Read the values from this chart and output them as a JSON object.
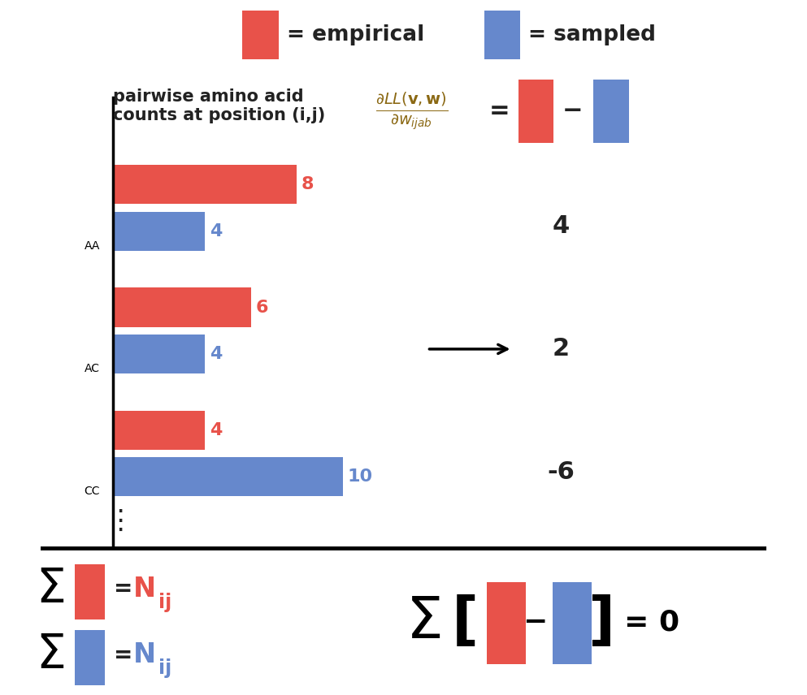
{
  "red_color": "#E8524A",
  "blue_color": "#6688CC",
  "background": "#FFFFFF",
  "legend_text_empirical": "= empirical",
  "legend_text_sampled": "= sampled",
  "label_text": "pairwise amino acid\ncounts at position (i,j)",
  "categories": [
    "AA",
    "AC",
    "CC"
  ],
  "empirical_vals": [
    8,
    6,
    4
  ],
  "sampled_vals": [
    4,
    4,
    10
  ],
  "derivatives": [
    "4",
    "2",
    "-6"
  ],
  "empirical_labels": [
    "8",
    "6",
    "4"
  ],
  "sampled_labels": [
    "4",
    "4",
    "10"
  ],
  "formula_color": "#8B6914",
  "text_color": "#222222",
  "deriv_color": "#222222"
}
